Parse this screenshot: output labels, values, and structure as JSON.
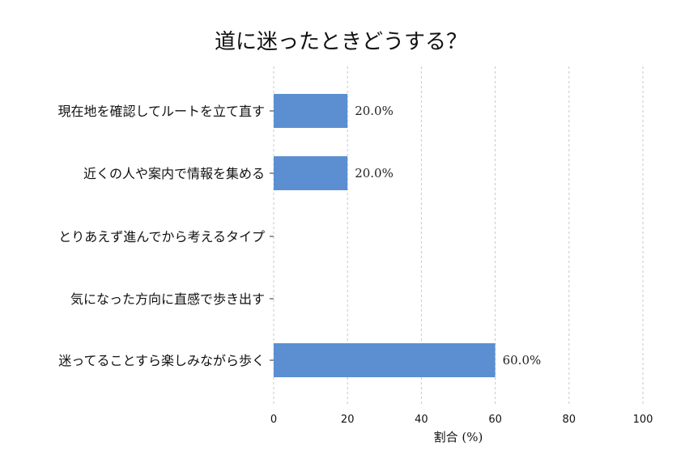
{
  "chart_data": {
    "type": "bar",
    "orientation": "horizontal",
    "title": "道に迷ったときどうする？",
    "xlabel": "割合 (%)",
    "ylabel": "",
    "xlim": [
      0,
      100
    ],
    "xticks": [
      0,
      20,
      40,
      60,
      80,
      100
    ],
    "grid": "vertical-dashed",
    "bar_color": "#5b8fd1",
    "categories": [
      "現在地を確認してルートを立て直す",
      "近くの人や案内で情報を集める",
      "とりあえず進んでから考えるタイプ",
      "気になった方向に直感で歩き出す",
      "迷ってることすら楽しみながら歩く"
    ],
    "values": [
      20.0,
      20.0,
      0,
      0,
      60.0
    ],
    "value_labels": [
      "20.0%",
      "20.0%",
      "",
      "",
      "60.0%"
    ]
  }
}
